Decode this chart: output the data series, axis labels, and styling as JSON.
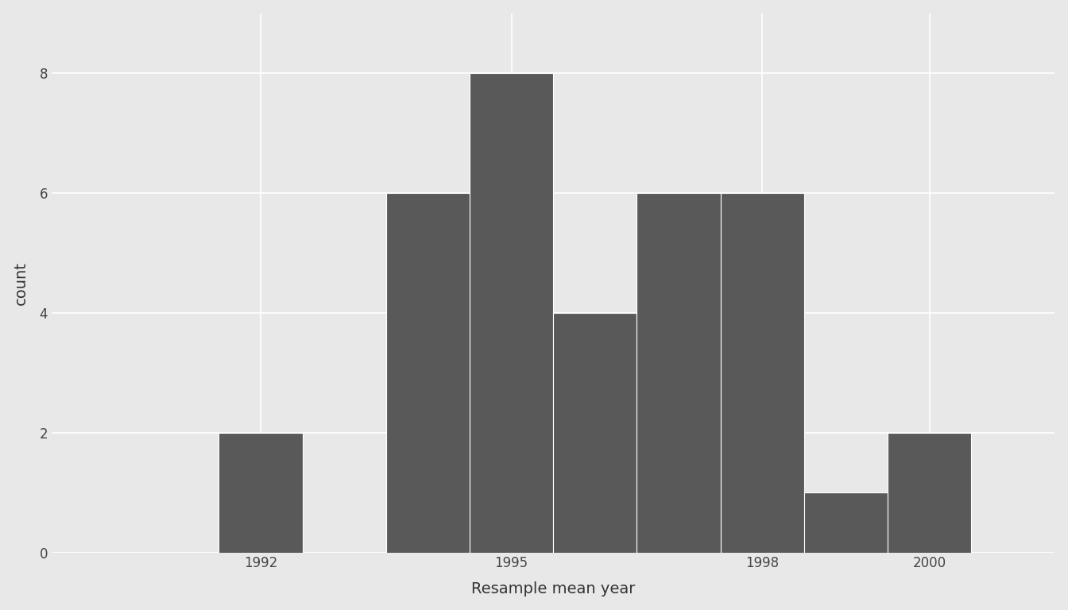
{
  "xlabel": "Resample mean year",
  "ylabel": "count",
  "bar_color": "#595959",
  "background_color": "#e8e8e8",
  "panel_color": "#e8e8e8",
  "grid_color": "#ffffff",
  "bin_lefts": [
    1990.5,
    1991.5,
    1992.5,
    1993.5,
    1994.5,
    1995.5,
    1996.5,
    1997.5,
    1998.5,
    1999.5
  ],
  "bar_heights": [
    0,
    2,
    0,
    6,
    8,
    4,
    6,
    6,
    1,
    2
  ],
  "bin_width": 1.0,
  "xlim": [
    1989.5,
    2001.5
  ],
  "ylim": [
    0,
    9.0
  ],
  "xticks": [
    1992,
    1995,
    1998,
    2000
  ],
  "yticks": [
    0,
    2,
    4,
    6,
    8
  ],
  "ytick_labels": [
    "0",
    "2",
    "4",
    "6",
    "8"
  ],
  "xlabel_fontsize": 14,
  "ylabel_fontsize": 14,
  "tick_fontsize": 12,
  "grid_linewidth": 1.2
}
